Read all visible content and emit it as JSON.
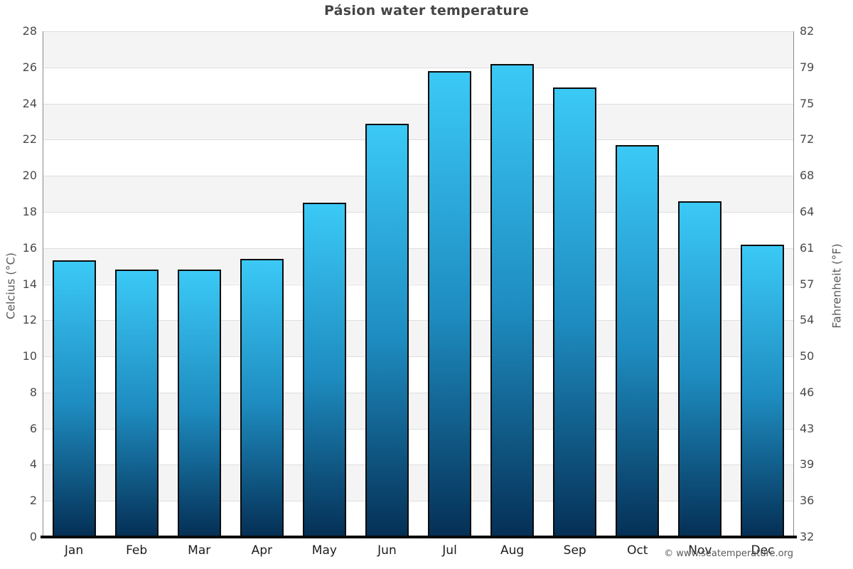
{
  "page": {
    "footer": "© www.seatemperature.org"
  },
  "chart_data": {
    "type": "bar",
    "title": "Pásion water temperature",
    "categories": [
      "Jan",
      "Feb",
      "Mar",
      "Apr",
      "May",
      "Jun",
      "Jul",
      "Aug",
      "Sep",
      "Oct",
      "Nov",
      "Dec"
    ],
    "values": [
      15.3,
      14.8,
      14.8,
      15.4,
      18.5,
      22.9,
      25.8,
      26.2,
      24.9,
      21.7,
      18.6,
      16.2
    ],
    "unit": "°C",
    "ylabel_left": "Celcius (°C)",
    "ylabel_right": "Fahrenheit (°F)",
    "ylim": [
      0,
      28
    ],
    "yticks_left": [
      0,
      2,
      4,
      6,
      8,
      10,
      12,
      14,
      16,
      18,
      20,
      22,
      24,
      26,
      28
    ],
    "yticks_right": [
      32,
      36,
      39,
      43,
      46,
      50,
      54,
      57,
      61,
      64,
      68,
      72,
      75,
      79,
      82
    ],
    "grid": "horizontal-bands-alternating",
    "legend": "none",
    "colors": {
      "bar_gradient_top": "#3bc9f6",
      "bar_gradient_mid": "#1e8cc0",
      "bar_gradient_bottom": "#053056",
      "bar_border": "#0b0b0b",
      "band_gray": "#f4f4f4",
      "band_white": "#ffffff",
      "gridline": "#dedede",
      "axis_spine": "#8a8a8a",
      "x_axis_line": "#0a0a0a",
      "title_text": "#454545",
      "tick_text": "#4a4a4a"
    }
  }
}
